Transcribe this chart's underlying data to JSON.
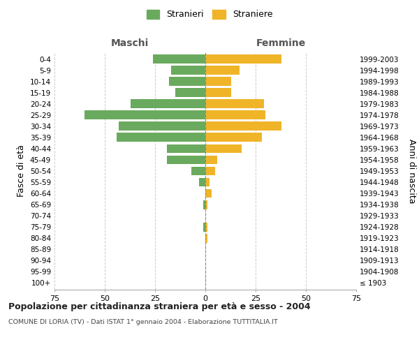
{
  "age_groups": [
    "100+",
    "95-99",
    "90-94",
    "85-89",
    "80-84",
    "75-79",
    "70-74",
    "65-69",
    "60-64",
    "55-59",
    "50-54",
    "45-49",
    "40-44",
    "35-39",
    "30-34",
    "25-29",
    "20-24",
    "15-19",
    "10-14",
    "5-9",
    "0-4"
  ],
  "birth_years": [
    "≤ 1903",
    "1904-1908",
    "1909-1913",
    "1914-1918",
    "1919-1923",
    "1924-1928",
    "1929-1933",
    "1934-1938",
    "1939-1943",
    "1944-1948",
    "1949-1953",
    "1954-1958",
    "1959-1963",
    "1964-1968",
    "1969-1973",
    "1974-1978",
    "1979-1983",
    "1984-1988",
    "1989-1993",
    "1994-1998",
    "1999-2003"
  ],
  "maschi": [
    0,
    0,
    0,
    0,
    0,
    1,
    0,
    1,
    0,
    3,
    7,
    19,
    19,
    44,
    43,
    60,
    37,
    15,
    18,
    17,
    26
  ],
  "femmine": [
    0,
    0,
    0,
    0,
    1,
    1,
    0,
    1,
    3,
    2,
    5,
    6,
    18,
    28,
    38,
    30,
    29,
    13,
    13,
    17,
    38
  ],
  "male_color": "#6aaa5e",
  "female_color": "#f0b429",
  "title": "Popolazione per cittadinanza straniera per età e sesso - 2004",
  "subtitle": "COMUNE DI LORIA (TV) - Dati ISTAT 1° gennaio 2004 - Elaborazione TUTTITALIA.IT",
  "ylabel_left": "Fasce di età",
  "ylabel_right": "Anni di nascita",
  "xlabel_left": "Maschi",
  "xlabel_right": "Femmine",
  "legend_stranieri": "Stranieri",
  "legend_straniere": "Straniere",
  "xlim": 75,
  "background_color": "#ffffff",
  "grid_color": "#cccccc",
  "bar_height": 0.8
}
